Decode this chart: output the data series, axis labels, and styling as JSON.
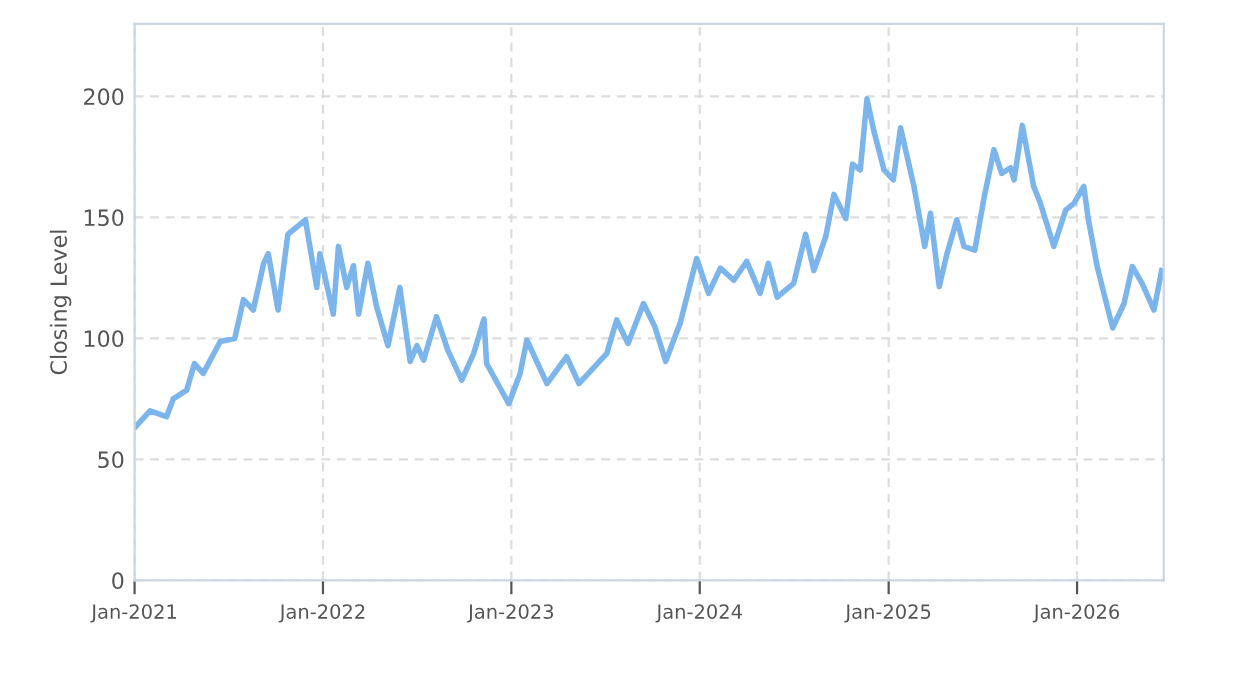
{
  "chart_data": {
    "type": "line",
    "ylabel": "Closing Level",
    "xlim": [
      "2021-01-01",
      "2026-06-18"
    ],
    "ylim": [
      0,
      230
    ],
    "yticks": [
      0,
      50,
      100,
      150,
      200
    ],
    "xticks": [
      {
        "value": "2021-01-01",
        "label": "Jan-2021"
      },
      {
        "value": "2022-01-01",
        "label": "Jan-2022"
      },
      {
        "value": "2023-01-01",
        "label": "Jan-2023"
      },
      {
        "value": "2024-01-01",
        "label": "Jan-2024"
      },
      {
        "value": "2025-01-01",
        "label": "Jan-2025"
      },
      {
        "value": "2026-01-01",
        "label": "Jan-2026"
      }
    ],
    "grid": true,
    "legend": false,
    "marker": "none",
    "line_style": "solid",
    "series": [
      {
        "color": "#7cb5ec",
        "x": [
          "2021-01-01",
          "2021-01-31",
          "2021-03-04",
          "2021-03-17",
          "2021-04-12",
          "2021-04-27",
          "2021-05-14",
          "2021-06-16",
          "2021-07-14",
          "2021-07-31",
          "2021-08-19",
          "2021-09-08",
          "2021-09-17",
          "2021-10-06",
          "2021-10-25",
          "2021-11-28",
          "2021-12-20",
          "2021-12-26",
          "2022-01-21",
          "2022-01-31",
          "2022-02-16",
          "2022-03-01",
          "2022-03-11",
          "2022-03-29",
          "2022-04-15",
          "2022-05-07",
          "2022-05-30",
          "2022-06-19",
          "2022-07-02",
          "2022-07-15",
          "2022-08-09",
          "2022-08-31",
          "2022-09-27",
          "2022-10-20",
          "2022-11-09",
          "2022-11-14",
          "2022-12-27",
          "2023-01-18",
          "2023-01-31",
          "2023-03-11",
          "2023-03-30",
          "2023-04-18",
          "2023-05-12",
          "2023-07-05",
          "2023-07-24",
          "2023-08-15",
          "2023-09-14",
          "2023-10-06",
          "2023-10-27",
          "2023-11-24",
          "2023-12-26",
          "2024-01-18",
          "2024-02-10",
          "2024-03-07",
          "2024-04-01",
          "2024-04-27",
          "2024-05-13",
          "2024-05-30",
          "2024-07-01",
          "2024-07-24",
          "2024-08-09",
          "2024-09-01",
          "2024-09-17",
          "2024-10-10",
          "2024-10-23",
          "2024-11-07",
          "2024-11-20",
          "2024-12-03",
          "2024-12-23",
          "2025-01-10",
          "2025-01-24",
          "2025-02-19",
          "2025-03-12",
          "2025-03-23",
          "2025-04-09",
          "2025-04-24",
          "2025-05-13",
          "2025-05-27",
          "2025-06-17",
          "2025-07-04",
          "2025-07-24",
          "2025-08-08",
          "2025-08-25",
          "2025-09-01",
          "2025-09-17",
          "2025-10-09",
          "2025-10-22",
          "2025-11-17",
          "2025-12-10",
          "2025-12-26",
          "2026-01-14",
          "2026-01-23",
          "2026-02-09",
          "2026-02-22",
          "2026-03-11",
          "2026-04-02",
          "2026-04-18",
          "2026-05-07",
          "2026-05-30",
          "2026-06-14"
        ],
        "values": [
          63,
          70,
          67.6,
          75,
          78.6,
          89.6,
          85.5,
          98.7,
          99.9,
          116,
          111.7,
          131,
          135,
          111.7,
          143,
          149,
          121,
          135,
          110,
          138,
          121,
          130,
          110,
          131,
          113,
          97,
          121,
          90.5,
          97,
          91,
          109,
          95,
          82.7,
          93.8,
          108,
          89.6,
          73,
          85.5,
          99.3,
          81.3,
          86.9,
          92.4,
          81.3,
          93.8,
          107.6,
          97.9,
          114.4,
          104.8,
          90.5,
          106.2,
          133,
          118.6,
          129,
          124,
          131.8,
          118.6,
          131,
          117,
          122.7,
          143,
          128,
          142,
          159.5,
          149.5,
          172,
          169.6,
          199,
          186,
          169.6,
          165.5,
          187,
          162.8,
          138,
          151.7,
          121.4,
          135,
          149,
          138,
          136.5,
          157.2,
          178,
          168.2,
          170.5,
          165.5,
          188,
          162.8,
          155.8,
          138,
          153,
          155.8,
          162.8,
          149,
          129.7,
          118.6,
          104.3,
          114.4,
          129.7,
          122.7,
          111.7,
          128
        ]
      }
    ]
  }
}
